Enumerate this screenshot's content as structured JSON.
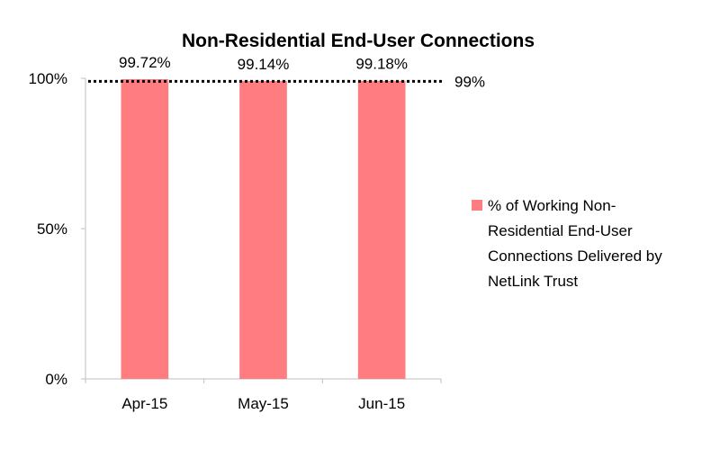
{
  "chart_data": {
    "type": "bar",
    "title": "Non-Residential End-User Connections",
    "categories": [
      "Apr-15",
      "May-15",
      "Jun-15"
    ],
    "series": [
      {
        "name": "% of Working Non-Residential End-User Connections Delivered by NetLink Trust",
        "values": [
          99.72,
          99.14,
          99.18
        ],
        "color": "#ff7c80"
      }
    ],
    "data_labels": [
      "99.72%",
      "99.14%",
      "99.18%"
    ],
    "ylim": [
      0,
      100
    ],
    "y_ticks": [
      {
        "value": 0,
        "label": "0%"
      },
      {
        "value": 50,
        "label": "50%"
      },
      {
        "value": 100,
        "label": "100%"
      }
    ],
    "reference_line": {
      "value": 99,
      "label": "99%",
      "style": "dotted",
      "color": "#000000"
    },
    "legend_lines": [
      "% of Working Non-",
      "Residential End-User",
      "Connections Delivered by",
      "NetLink Trust"
    ],
    "legend_position": "right",
    "grid": false,
    "axis_color": "#bfbfbf"
  }
}
